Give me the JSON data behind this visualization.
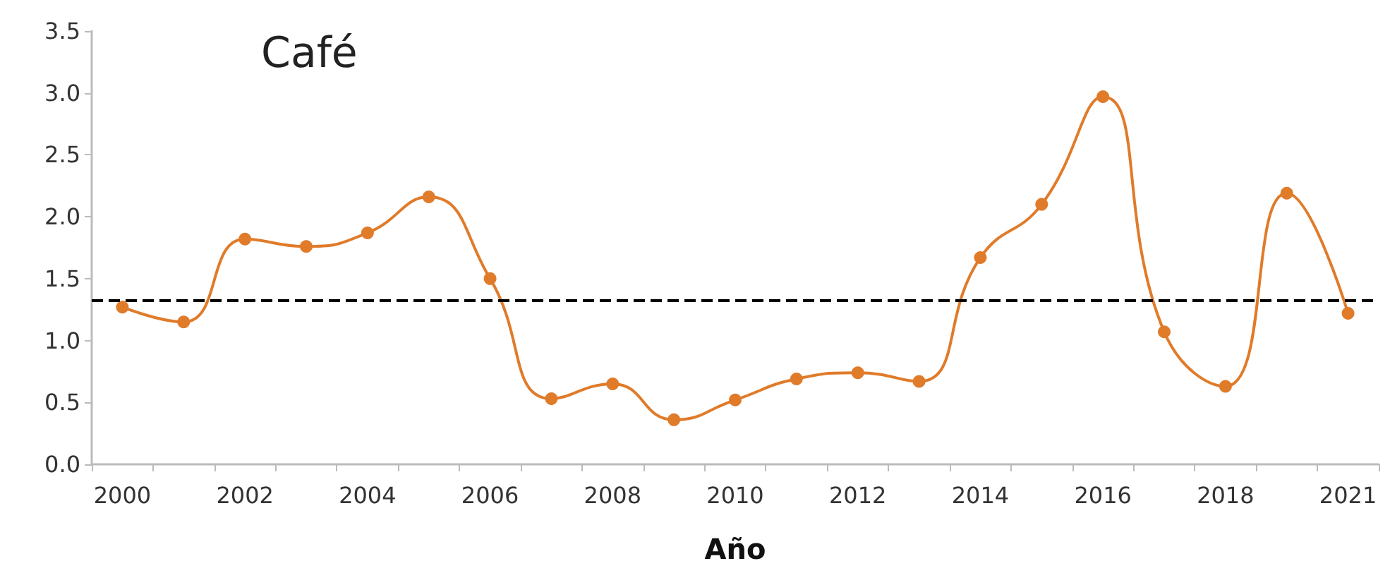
{
  "chart_data": {
    "type": "line",
    "title": "Café",
    "xlabel": "Año",
    "categories": [
      "2000",
      null,
      "2002",
      null,
      "2004",
      null,
      "2006",
      null,
      "2008",
      null,
      "2010",
      null,
      "2012",
      null,
      "2014",
      null,
      "2016",
      null,
      "2018",
      null,
      "2021"
    ],
    "series": [
      {
        "color": "#e07b2a",
        "values": [
          1.27,
          1.15,
          1.82,
          1.76,
          1.87,
          2.16,
          1.5,
          0.53,
          0.65,
          0.36,
          0.52,
          0.69,
          0.74,
          0.67,
          1.67,
          2.1,
          2.97,
          1.07,
          0.63,
          2.19,
          1.22
        ]
      }
    ],
    "ylim": [
      0,
      3.5
    ],
    "yticks": [
      {
        "value": 0,
        "label": "0.0"
      },
      {
        "value": 0.5,
        "label": "0.5"
      },
      {
        "value": 1,
        "label": "1.0"
      },
      {
        "value": 1.5,
        "label": "1.5"
      },
      {
        "value": 2,
        "label": "2.0"
      },
      {
        "value": 2.5,
        "label": "2.5"
      },
      {
        "value": 3,
        "label": "3.0"
      },
      {
        "value": 3.5,
        "label": "3.5"
      }
    ],
    "ref_lines": [
      {
        "axis": "y",
        "value": 1.32,
        "color": "#000000",
        "line_style": "dashed"
      }
    ],
    "grid": false,
    "marker": "circle",
    "line_style": "solid"
  }
}
